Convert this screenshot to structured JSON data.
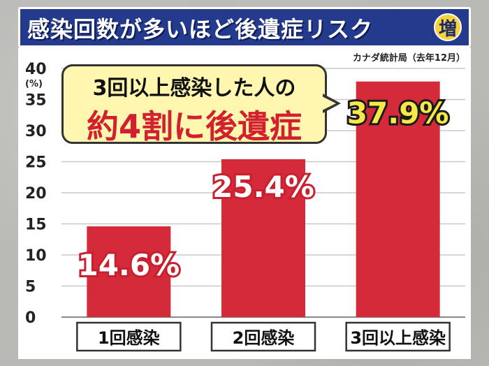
{
  "header": {
    "title": "感染回数が多いほど後遺症リスク",
    "badge": "増"
  },
  "source": "カナダ統計局（去年12月）",
  "callout": {
    "line1": "3回以上感染した人の",
    "line2": "約4割に後遺症"
  },
  "colors": {
    "bar": "#d42a3a",
    "header": "#243a8d",
    "highlight_label": "#f5e94a",
    "callout_bg": "#fff7b0",
    "callout_accent": "#d2202f"
  },
  "chart_data": {
    "type": "bar",
    "categories": [
      "1回感染",
      "2回感染",
      "3回以上感染"
    ],
    "values": [
      14.6,
      25.4,
      37.9
    ],
    "value_labels": [
      "14.6%",
      "25.4%",
      "37.9%"
    ],
    "ylabel": "(%)",
    "ylim": [
      0,
      40
    ],
    "yticks": [
      0,
      5,
      10,
      15,
      20,
      25,
      30,
      35,
      40
    ],
    "grid": true
  }
}
